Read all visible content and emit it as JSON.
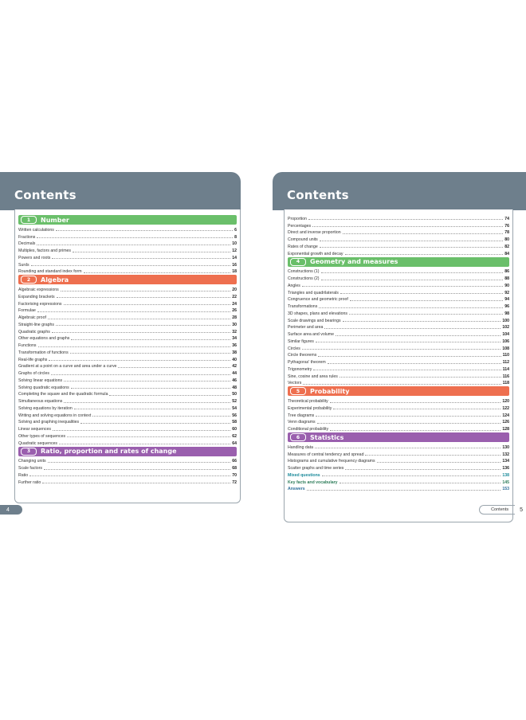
{
  "left": {
    "title": "Contents",
    "page_number": "4",
    "items": [
      {
        "kind": "section",
        "num": "1",
        "label": "Number",
        "color": "green"
      },
      {
        "kind": "entry",
        "title": "Written calculations",
        "page": "6"
      },
      {
        "kind": "entry",
        "title": "Fractions",
        "page": "8"
      },
      {
        "kind": "entry",
        "title": "Decimals",
        "page": "10"
      },
      {
        "kind": "entry",
        "title": "Multiples, factors and primes",
        "page": "12"
      },
      {
        "kind": "entry",
        "title": "Powers and roots",
        "page": "14"
      },
      {
        "kind": "entry",
        "title": "Surds",
        "page": "16"
      },
      {
        "kind": "entry",
        "title": "Rounding and standard index form",
        "page": "18"
      },
      {
        "kind": "section",
        "num": "2",
        "label": "Algebra",
        "color": "orange"
      },
      {
        "kind": "entry",
        "title": "Algebraic expressions",
        "page": "20"
      },
      {
        "kind": "entry",
        "title": "Expanding brackets",
        "page": "22"
      },
      {
        "kind": "entry",
        "title": "Factorising expressions",
        "page": "24"
      },
      {
        "kind": "entry",
        "title": "Formulae",
        "page": "26"
      },
      {
        "kind": "entry",
        "title": "Algebraic proof",
        "page": "28"
      },
      {
        "kind": "entry",
        "title": "Straight-line graphs",
        "page": "30"
      },
      {
        "kind": "entry",
        "title": "Quadratic graphs",
        "page": "32"
      },
      {
        "kind": "entry",
        "title": "Other equations and graphs",
        "page": "34"
      },
      {
        "kind": "entry",
        "title": "Functions",
        "page": "36"
      },
      {
        "kind": "entry",
        "title": "Transformation of functions",
        "page": "38"
      },
      {
        "kind": "entry",
        "title": "Real-life graphs",
        "page": "40"
      },
      {
        "kind": "entry",
        "title": "Gradient at a point on a curve and area under a curve",
        "page": "42"
      },
      {
        "kind": "entry",
        "title": "Graphs of circles",
        "page": "44"
      },
      {
        "kind": "entry",
        "title": "Solving linear equations",
        "page": "46"
      },
      {
        "kind": "entry",
        "title": "Solving quadratic equations",
        "page": "48"
      },
      {
        "kind": "entry",
        "title": "Completing the square and the quadratic formula",
        "page": "50"
      },
      {
        "kind": "entry",
        "title": "Simultaneous equations",
        "page": "52"
      },
      {
        "kind": "entry",
        "title": "Solving equations by iteration",
        "page": "54"
      },
      {
        "kind": "entry",
        "title": "Writing and solving equations in context",
        "page": "56"
      },
      {
        "kind": "entry",
        "title": "Solving and graphing inequalities",
        "page": "58"
      },
      {
        "kind": "entry",
        "title": "Linear sequences",
        "page": "60"
      },
      {
        "kind": "entry",
        "title": "Other types of sequences",
        "page": "62"
      },
      {
        "kind": "entry",
        "title": "Quadratic sequences",
        "page": "64"
      },
      {
        "kind": "section",
        "num": "3",
        "label": "Ratio, proportion and rates of change",
        "color": "purple"
      },
      {
        "kind": "entry",
        "title": "Changing units",
        "page": "66"
      },
      {
        "kind": "entry",
        "title": "Scale factors",
        "page": "68"
      },
      {
        "kind": "entry",
        "title": "Ratio",
        "page": "70"
      },
      {
        "kind": "entry",
        "title": "Further ratio",
        "page": "72"
      }
    ]
  },
  "right": {
    "title": "Contents",
    "footer_label": "Contents",
    "page_number": "5",
    "items": [
      {
        "kind": "entry",
        "title": "Proportion",
        "page": "74"
      },
      {
        "kind": "entry",
        "title": "Percentages",
        "page": "76"
      },
      {
        "kind": "entry",
        "title": "Direct and inverse proportion",
        "page": "78"
      },
      {
        "kind": "entry",
        "title": "Compound units",
        "page": "80"
      },
      {
        "kind": "entry",
        "title": "Rates of change",
        "page": "82"
      },
      {
        "kind": "entry",
        "title": "Exponential growth and decay",
        "page": "84"
      },
      {
        "kind": "section",
        "num": "4",
        "label": "Geometry and measures",
        "color": "green"
      },
      {
        "kind": "entry",
        "title": "Constructions (1)",
        "page": "86"
      },
      {
        "kind": "entry",
        "title": "Constructions (2)",
        "page": "88"
      },
      {
        "kind": "entry",
        "title": "Angles",
        "page": "90"
      },
      {
        "kind": "entry",
        "title": "Triangles and quadrilaterals",
        "page": "92"
      },
      {
        "kind": "entry",
        "title": "Congruence and geometric proof",
        "page": "94"
      },
      {
        "kind": "entry",
        "title": "Transformations",
        "page": "96"
      },
      {
        "kind": "entry",
        "title": "3D shapes, plans and elevations",
        "page": "98"
      },
      {
        "kind": "entry",
        "title": "Scale drawings and bearings",
        "page": "100"
      },
      {
        "kind": "entry",
        "title": "Perimeter and area",
        "page": "102"
      },
      {
        "kind": "entry",
        "title": "Surface area and volume",
        "page": "104"
      },
      {
        "kind": "entry",
        "title": "Similar figures",
        "page": "106"
      },
      {
        "kind": "entry",
        "title": "Circles",
        "page": "108"
      },
      {
        "kind": "entry",
        "title": "Circle theorems",
        "page": "110"
      },
      {
        "kind": "entry",
        "title": "Pythagoras' theorem",
        "page": "112"
      },
      {
        "kind": "entry",
        "title": "Trigonometry",
        "page": "114"
      },
      {
        "kind": "entry",
        "title": "Sine, cosine and area rules",
        "page": "116"
      },
      {
        "kind": "entry",
        "title": "Vectors",
        "page": "118"
      },
      {
        "kind": "section",
        "num": "5",
        "label": "Probability",
        "color": "orange"
      },
      {
        "kind": "entry",
        "title": "Theoretical probability",
        "page": "120"
      },
      {
        "kind": "entry",
        "title": "Experimental probability",
        "page": "122"
      },
      {
        "kind": "entry",
        "title": "Tree diagrams",
        "page": "124"
      },
      {
        "kind": "entry",
        "title": "Venn diagrams",
        "page": "126"
      },
      {
        "kind": "entry",
        "title": "Conditional probability",
        "page": "128"
      },
      {
        "kind": "section",
        "num": "6",
        "label": "Statistics",
        "color": "purple"
      },
      {
        "kind": "entry",
        "title": "Handling data",
        "page": "130"
      },
      {
        "kind": "entry",
        "title": "Measures of central tendency and spread",
        "page": "132"
      },
      {
        "kind": "entry",
        "title": "Histograms and cumulative frequency diagrams",
        "page": "134"
      },
      {
        "kind": "entry",
        "title": "Scatter graphs and time series",
        "page": "136"
      },
      {
        "kind": "entry",
        "title": "Mixed questions",
        "page": "138",
        "style": "teal"
      },
      {
        "kind": "entry",
        "title": "Key facts and vocabulary",
        "page": "145",
        "style": "teal2"
      },
      {
        "kind": "entry",
        "title": "Answers",
        "page": "153",
        "style": "teal3"
      }
    ]
  }
}
